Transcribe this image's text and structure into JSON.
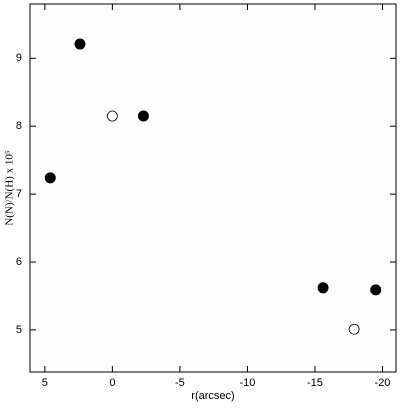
{
  "chart_data": {
    "type": "scatter",
    "xlabel": "r(arcsec)",
    "ylabel": "N(N)/N(H) x 10⁵",
    "xlim": [
      6.1,
      -21
    ],
    "xticks": [
      5,
      0,
      -5,
      -10,
      -15,
      -20
    ],
    "ylim": [
      4.38,
      9.8
    ],
    "yticks": [
      5,
      6,
      7,
      8,
      9
    ],
    "series": [
      {
        "marker": "filled",
        "color": "#000000",
        "x": [
          4.6,
          2.4,
          -2.3,
          -15.6,
          -19.5
        ],
        "values": [
          7.24,
          9.21,
          8.15,
          5.62,
          5.59
        ]
      },
      {
        "marker": "open",
        "color": "#000000",
        "x": [
          0,
          -17.9
        ],
        "values": [
          8.15,
          5.01
        ]
      }
    ]
  }
}
